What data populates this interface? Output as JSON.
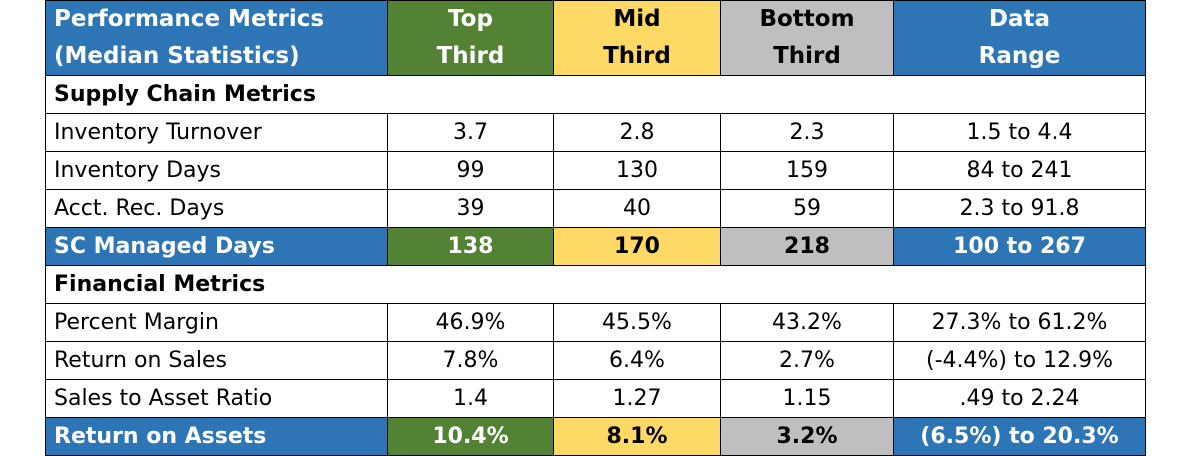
{
  "header": {
    "columns": [
      [
        "Performance Metrics",
        "(Median Statistics)"
      ],
      [
        "Top",
        "Third"
      ],
      [
        "Mid",
        "Third"
      ],
      [
        "Bottom",
        "Third"
      ],
      [
        "Data",
        "Range"
      ]
    ]
  },
  "sections": [
    {
      "title": "Supply Chain Metrics",
      "rows": [
        [
          "Inventory Turnover",
          "3.7",
          "2.8",
          "2.3",
          "1.5 to 4.4"
        ],
        [
          "Inventory Days",
          "99",
          "130",
          "159",
          "84 to 241"
        ],
        [
          "Acct. Rec. Days",
          "39",
          "40",
          "59",
          "2.3 to 91.8"
        ]
      ],
      "summary": [
        "SC Managed Days",
        "138",
        "170",
        "218",
        "100 to 267"
      ]
    },
    {
      "title": "Financial Metrics",
      "rows": [
        [
          "Percent Margin",
          "46.9%",
          "45.5%",
          "43.2%",
          "27.3% to 61.2%"
        ],
        [
          "Return on Sales",
          "7.8%",
          "6.4%",
          "2.7%",
          "(-4.4%) to 12.9%"
        ],
        [
          "Sales to Asset Ratio",
          "1.4",
          "1.27",
          "1.15",
          ".49 to 2.24"
        ]
      ],
      "summary": [
        "Return on Assets",
        "10.4%",
        "8.1%",
        "3.2%",
        "(6.5%) to 20.3%"
      ]
    }
  ]
}
